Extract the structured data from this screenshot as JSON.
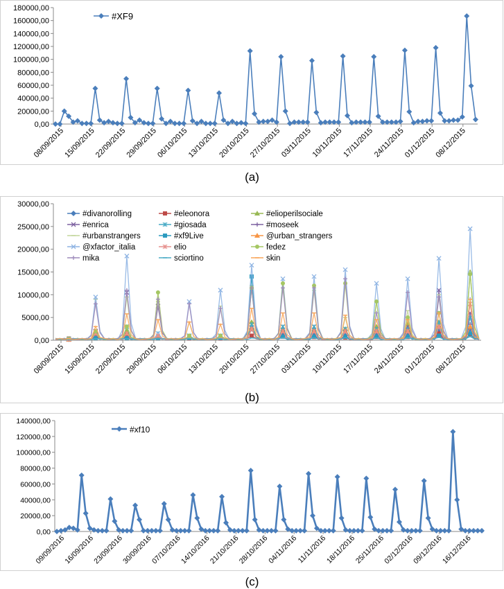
{
  "captions": {
    "a": "(a)",
    "b": "(b)",
    "c": "(c)"
  },
  "chart_data": [
    {
      "type": "line",
      "panel": "a",
      "ylim": [
        0,
        180000
      ],
      "yticks": [
        "0,00",
        "20000,00",
        "40000,00",
        "60000,00",
        "80000,00",
        "100000,00",
        "120000,00",
        "140000,00",
        "160000,00",
        "180000,00"
      ],
      "xticklabels": [
        "08/09/2015",
        "15/09/2015",
        "22/09/2015",
        "29/09/2015",
        "06/10/2015",
        "13/10/2015",
        "20/10/2015",
        "27/10/2015",
        "03/11/2015",
        "10/11/2015",
        "17/11/2015",
        "24/11/2015",
        "01/12/2015",
        "08/12/2015"
      ],
      "legend_position": "top-left",
      "grid": false,
      "series": [
        {
          "name": "#XF9",
          "color": "#4a7ebb",
          "values": [
            0,
            0,
            20000,
            12000,
            3000,
            5000,
            1000,
            1000,
            1000,
            55000,
            6000,
            2000,
            4000,
            2000,
            1000,
            1000,
            70000,
            10000,
            2000,
            6000,
            2000,
            1000,
            1000,
            55000,
            8000,
            1000,
            4000,
            1000,
            1000,
            1000,
            52000,
            5000,
            1000,
            4000,
            1000,
            1000,
            1000,
            48000,
            6000,
            1000,
            4000,
            1000,
            2000,
            1000,
            113000,
            16000,
            3000,
            4000,
            4000,
            6000,
            3000,
            104000,
            20000,
            1000,
            3000,
            3000,
            3000,
            3000,
            98000,
            18000,
            2000,
            3000,
            3000,
            3000,
            3000,
            105000,
            13000,
            2000,
            3000,
            3000,
            3000,
            3000,
            104000,
            12000,
            3000,
            3000,
            3000,
            3000,
            4000,
            114000,
            19000,
            2000,
            4000,
            4000,
            5000,
            5000,
            118000,
            17000,
            5000,
            5000,
            6000,
            6000,
            11000,
            167000,
            59000,
            7000
          ]
        }
      ]
    },
    {
      "type": "line",
      "panel": "b",
      "ylim": [
        0,
        30000
      ],
      "yticks": [
        "0,00",
        "5000,00",
        "10000,00",
        "15000,00",
        "20000,00",
        "25000,00",
        "30000,00"
      ],
      "xticklabels": [
        "08/09/2015",
        "15/09/2015",
        "22/09/2015",
        "29/09/2015",
        "06/10/2015",
        "13/10/2015",
        "20/10/2015",
        "27/10/2015",
        "03/11/2015",
        "10/11/2015",
        "17/11/2015",
        "24/11/2015",
        "01/12/2015",
        "08/12/2015"
      ],
      "legend_position": "top",
      "grid": false,
      "series": [
        {
          "name": "#divanorolling",
          "color": "#4a7ebb",
          "marker": "diamond",
          "peaks": [
            0,
            1500,
            1000,
            800,
            600,
            500,
            2500,
            1500,
            1200,
            1000,
            1500,
            1500,
            2000,
            2500
          ]
        },
        {
          "name": "#eleonora",
          "color": "#be4b48",
          "marker": "square",
          "peaks": [
            0,
            800,
            600,
            500,
            400,
            400,
            1000,
            800,
            700,
            600,
            700,
            700,
            1500,
            1200
          ]
        },
        {
          "name": "#elioperilsociale",
          "color": "#98b954",
          "marker": "triangle",
          "peaks": [
            0,
            1500,
            2000,
            1200,
            800,
            800,
            4000,
            2500,
            2500,
            2500,
            3000,
            3500,
            4000,
            15000
          ]
        },
        {
          "name": "#enrica",
          "color": "#7d60a0",
          "marker": "x",
          "peaks": [
            0,
            2000,
            10500,
            7500,
            800,
            900,
            2800,
            3000,
            3000,
            2500,
            2500,
            3000,
            11000,
            6000
          ]
        },
        {
          "name": "#giosada",
          "color": "#46aac5",
          "marker": "star",
          "peaks": [
            0,
            1800,
            3000,
            1500,
            1000,
            1000,
            3500,
            3000,
            3000,
            2500,
            2500,
            2500,
            4000,
            5000
          ]
        },
        {
          "name": "#moseek",
          "color": "#7d60a0",
          "marker": "plus",
          "peaks": [
            0,
            1200,
            1500,
            1000,
            700,
            700,
            2500,
            2000,
            2000,
            2000,
            2000,
            2000,
            3000,
            3500
          ]
        },
        {
          "name": "#urbanstrangers",
          "color": "#c3d69b",
          "marker": "dash",
          "peaks": [
            0,
            9000,
            9500,
            8500,
            4000,
            7500,
            12000,
            12500,
            11000,
            5000,
            8500,
            6500,
            10000,
            15000
          ]
        },
        {
          "name": "#xf9Live",
          "color": "#2c9bbf",
          "marker": "square",
          "peaks": [
            0,
            500,
            500,
            500,
            500,
            500,
            14000,
            800,
            800,
            800,
            800,
            800,
            1000,
            1500
          ]
        },
        {
          "name": "@urban_strangers",
          "color": "#f79646",
          "marker": "triangle",
          "peaks": [
            0,
            1500,
            1500,
            1000,
            800,
            800,
            2500,
            2000,
            2000,
            2000,
            2000,
            2000,
            3000,
            3000
          ]
        },
        {
          "name": "@xfactor_italia",
          "color": "#8eb4e3",
          "marker": "x",
          "peaks": [
            0,
            9500,
            18500,
            1500,
            8500,
            11000,
            16500,
            13500,
            14000,
            15500,
            12500,
            13500,
            18000,
            24500
          ]
        },
        {
          "name": "elio",
          "color": "#e6908d",
          "marker": "star",
          "peaks": [
            0,
            1500,
            1500,
            1000,
            800,
            800,
            2500,
            2000,
            2000,
            2000,
            2000,
            2000,
            3000,
            8000
          ]
        },
        {
          "name": "fedez",
          "color": "#a5c763",
          "marker": "circle",
          "peaks": [
            0,
            2000,
            3000,
            10500,
            1000,
            1000,
            11500,
            12500,
            12000,
            12500,
            8500,
            5000,
            6000,
            14500
          ]
        },
        {
          "name": "mika",
          "color": "#9e8bbb",
          "marker": "plus",
          "peaks": [
            0,
            8000,
            11000,
            9000,
            8000,
            7000,
            11500,
            11500,
            11500,
            13500,
            6000,
            10500,
            9500,
            9000
          ]
        },
        {
          "name": "sciortino",
          "color": "#4bacc6",
          "marker": "dash",
          "peaks": [
            0,
            300,
            300,
            300,
            300,
            300,
            500,
            500,
            500,
            500,
            500,
            500,
            600,
            800
          ]
        },
        {
          "name": "skin",
          "color": "#f9a65a",
          "marker": "dash",
          "peaks": [
            0,
            3000,
            5800,
            4500,
            4000,
            3500,
            7000,
            6000,
            6000,
            5500,
            4500,
            4500,
            6000,
            9000
          ]
        }
      ]
    },
    {
      "type": "line",
      "panel": "c",
      "ylim": [
        0,
        140000
      ],
      "yticks": [
        "0,00",
        "20000,00",
        "40000,00",
        "60000,00",
        "80000,00",
        "100000,00",
        "120000,00",
        "140000,00"
      ],
      "xticklabels": [
        "09/09/2016",
        "16/09/2016",
        "23/09/2016",
        "30/09/2016",
        "07/10/2016",
        "14/10/2016",
        "21/10/2016",
        "28/10/2016",
        "04/11/2016",
        "11/11/2016",
        "18/11/2016",
        "25/11/2016",
        "02/12/2016",
        "09/12/2016",
        "16/12/2016"
      ],
      "legend_position": "top-left",
      "grid": false,
      "series": [
        {
          "name": "#xf10",
          "color": "#4a7ebb",
          "values": [
            0,
            1000,
            2000,
            5000,
            4000,
            2000,
            71000,
            23000,
            4000,
            2000,
            1000,
            1000,
            1000,
            41000,
            13000,
            2000,
            1000,
            1000,
            1000,
            33000,
            15000,
            1000,
            1000,
            1000,
            1000,
            1000,
            35000,
            15000,
            2000,
            1000,
            1000,
            1000,
            1000,
            46000,
            17000,
            3000,
            1000,
            1000,
            1000,
            1000,
            44000,
            11000,
            2000,
            1000,
            1000,
            1000,
            1000,
            77000,
            15000,
            2000,
            1000,
            1000,
            1000,
            1000,
            57000,
            15000,
            3000,
            1000,
            1000,
            1000,
            1000,
            73000,
            20000,
            4000,
            1000,
            1000,
            1000,
            1000,
            69000,
            17000,
            2000,
            1000,
            1000,
            1000,
            1000,
            67000,
            18000,
            3000,
            1000,
            1000,
            1000,
            1000,
            53000,
            12000,
            2000,
            1000,
            1000,
            1000,
            1000,
            64000,
            17000,
            3000,
            1000,
            1000,
            1000,
            1000,
            126000,
            40000,
            3000,
            1000,
            1000,
            1000,
            1000,
            1000
          ]
        }
      ]
    }
  ]
}
